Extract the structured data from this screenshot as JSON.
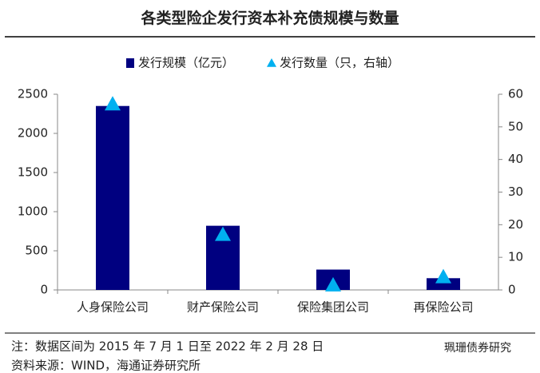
{
  "chart_data": {
    "type": "bar",
    "title": "各类型险企发行资本补充债规模与数量",
    "categories": [
      "人身保险公司",
      "财产保险公司",
      "保险集团公司",
      "再保险公司"
    ],
    "series": [
      {
        "name": "发行规模（亿元）",
        "color": "#000080",
        "values": [
          2350,
          820,
          260,
          150
        ]
      },
      {
        "name": "发行数量（只，右轴）",
        "color": "#00b0f0",
        "axis": "y2",
        "values": [
          57,
          17,
          1.5,
          4
        ]
      }
    ],
    "ylim": [
      0,
      2500
    ],
    "yticks": [
      0,
      500,
      1000,
      1500,
      2000,
      2500
    ],
    "y2lim": [
      0,
      60
    ],
    "y2ticks": [
      0,
      10,
      20,
      30,
      40,
      50,
      60
    ],
    "grid": false,
    "note": "注：数据区间为 2015 年 7 月 1 日至 2022 年 2 月 28 日",
    "source": "资料来源：WIND，海通证券研究所",
    "watermark": "珮珊债券研究"
  }
}
